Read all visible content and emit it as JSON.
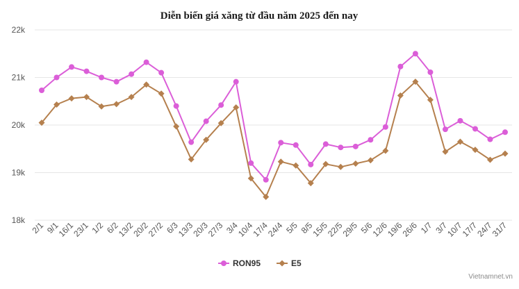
{
  "chart_data": {
    "type": "line",
    "title": "Diễn biến giá xăng từ đầu năm 2025 đến nay",
    "xlabel": "",
    "ylabel": "",
    "ylim": [
      18000,
      22000
    ],
    "yticks": [
      18000,
      19000,
      20000,
      21000,
      22000
    ],
    "ytick_labels": [
      "18k",
      "19k",
      "20k",
      "21k",
      "22k"
    ],
    "grid": true,
    "legend_position": "bottom",
    "categories": [
      "2/1",
      "9/1",
      "16/1",
      "23/1",
      "1/2",
      "6/2",
      "13/2",
      "20/2",
      "27/2",
      "6/3",
      "13/3",
      "20/3",
      "27/3",
      "3/4",
      "10/4",
      "17/4",
      "24/4",
      "5/5",
      "8/5",
      "15/5",
      "22/5",
      "29/5",
      "5/6",
      "12/6",
      "19/6",
      "26/6",
      "1/7",
      "3/7",
      "10/7",
      "17/7",
      "24/7",
      "31/7"
    ],
    "series": [
      {
        "name": "RON95",
        "color": "#db5ed8",
        "marker": "circle",
        "values": [
          20730,
          21000,
          21220,
          21130,
          21000,
          20910,
          21070,
          21320,
          21100,
          20400,
          19640,
          20080,
          20420,
          20910,
          19200,
          18850,
          19630,
          19580,
          19170,
          19600,
          19530,
          19550,
          19690,
          19960,
          21230,
          21500,
          21110,
          19910,
          20090,
          19920,
          19700,
          19850
        ]
      },
      {
        "name": "E5",
        "color": "#b5804e",
        "marker": "diamond",
        "values": [
          20050,
          20430,
          20560,
          20590,
          20390,
          20440,
          20590,
          20850,
          20660,
          19970,
          19280,
          19690,
          20040,
          20370,
          18880,
          18490,
          19230,
          19150,
          18780,
          19180,
          19120,
          19190,
          19260,
          19460,
          20620,
          20910,
          20530,
          19440,
          19650,
          19480,
          19270,
          19400
        ]
      }
    ]
  },
  "credit": "Vietnamnet.vn"
}
